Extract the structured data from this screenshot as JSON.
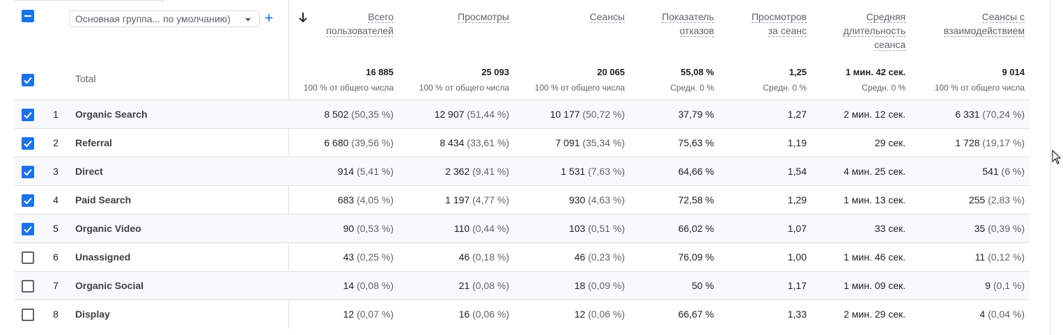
{
  "dimension_selector": {
    "label": "Основная группа... по умолчанию)"
  },
  "headers": [
    {
      "key": "users",
      "lines": [
        "Всего",
        "пользователей"
      ]
    },
    {
      "key": "views",
      "lines": [
        "Просмотры"
      ]
    },
    {
      "key": "sessions",
      "lines": [
        "Сеансы"
      ]
    },
    {
      "key": "bounce",
      "lines": [
        "Показатель",
        "отказов"
      ]
    },
    {
      "key": "views_per_session",
      "lines": [
        "Просмотров",
        "за сеанс"
      ]
    },
    {
      "key": "avg_duration",
      "lines": [
        "Средняя",
        "длительность",
        "сеанса"
      ]
    },
    {
      "key": "engaged",
      "lines": [
        "Сеансы с",
        "взаимодействием"
      ]
    }
  ],
  "total": {
    "label": "Total",
    "values": [
      "16 885",
      "25 093",
      "20 065",
      "55,08 %",
      "1,25",
      "1 мин. 42 сек.",
      "9 014"
    ],
    "subs": [
      "100 % от общего числа",
      "100 % от общего числа",
      "100 % от общего числа",
      "Средн. 0 %",
      "Средн. 0 %",
      "Средн. 0 %",
      "100 % от общего числа"
    ]
  },
  "rows": [
    {
      "index": "1",
      "name": "Organic Search",
      "checked": true,
      "cells": [
        [
          "8 502",
          "(50,35 %)"
        ],
        [
          "12 907",
          "(51,44 %)"
        ],
        [
          "10 177",
          "(50,72 %)"
        ],
        [
          "37,79 %",
          ""
        ],
        [
          "1,27",
          ""
        ],
        [
          "2 мин. 12 сек.",
          ""
        ],
        [
          "6 331",
          "(70,24 %)"
        ]
      ]
    },
    {
      "index": "2",
      "name": "Referral",
      "checked": true,
      "cells": [
        [
          "6 680",
          "(39,56 %)"
        ],
        [
          "8 434",
          "(33,61 %)"
        ],
        [
          "7 091",
          "(35,34 %)"
        ],
        [
          "75,63 %",
          ""
        ],
        [
          "1,19",
          ""
        ],
        [
          "29 сек.",
          ""
        ],
        [
          "1 728",
          "(19,17 %)"
        ]
      ]
    },
    {
      "index": "3",
      "name": "Direct",
      "checked": true,
      "cells": [
        [
          "914",
          "(5,41 %)"
        ],
        [
          "2 362",
          "(9,41 %)"
        ],
        [
          "1 531",
          "(7,63 %)"
        ],
        [
          "64,66 %",
          ""
        ],
        [
          "1,54",
          ""
        ],
        [
          "4 мин. 25 сек.",
          ""
        ],
        [
          "541",
          "(6 %)"
        ]
      ]
    },
    {
      "index": "4",
      "name": "Paid Search",
      "checked": true,
      "cells": [
        [
          "683",
          "(4,05 %)"
        ],
        [
          "1 197",
          "(4,77 %)"
        ],
        [
          "930",
          "(4,63 %)"
        ],
        [
          "72,58 %",
          ""
        ],
        [
          "1,29",
          ""
        ],
        [
          "1 мин. 13 сек.",
          ""
        ],
        [
          "255",
          "(2,83 %)"
        ]
      ]
    },
    {
      "index": "5",
      "name": "Organic Video",
      "checked": true,
      "cells": [
        [
          "90",
          "(0,53 %)"
        ],
        [
          "110",
          "(0,44 %)"
        ],
        [
          "103",
          "(0,51 %)"
        ],
        [
          "66,02 %",
          ""
        ],
        [
          "1,07",
          ""
        ],
        [
          "33 сек.",
          ""
        ],
        [
          "35",
          "(0,39 %)"
        ]
      ]
    },
    {
      "index": "6",
      "name": "Unassigned",
      "checked": false,
      "cells": [
        [
          "43",
          "(0,25 %)"
        ],
        [
          "46",
          "(0,18 %)"
        ],
        [
          "46",
          "(0,23 %)"
        ],
        [
          "76,09 %",
          ""
        ],
        [
          "1,00",
          ""
        ],
        [
          "1 мин. 46 сек.",
          ""
        ],
        [
          "11",
          "(0,12 %)"
        ]
      ]
    },
    {
      "index": "7",
      "name": "Organic Social",
      "checked": false,
      "cells": [
        [
          "14",
          "(0,08 %)"
        ],
        [
          "21",
          "(0,08 %)"
        ],
        [
          "18",
          "(0,09 %)"
        ],
        [
          "50 %",
          ""
        ],
        [
          "1,17",
          ""
        ],
        [
          "1 мин. 09 сек.",
          ""
        ],
        [
          "9",
          "(0,1 %)"
        ]
      ]
    },
    {
      "index": "8",
      "name": "Display",
      "checked": false,
      "cells": [
        [
          "12",
          "(0,07 %)"
        ],
        [
          "16",
          "(0,06 %)"
        ],
        [
          "12",
          "(0,06 %)"
        ],
        [
          "66,67 %",
          ""
        ],
        [
          "1,33",
          ""
        ],
        [
          "2 мин. 29 сек.",
          ""
        ],
        [
          "4",
          "(0,04 %)"
        ]
      ]
    }
  ],
  "colors": {
    "accent": "#1a73e8",
    "row_shade": "#f8f9fa",
    "muted_text": "#5f6368"
  }
}
